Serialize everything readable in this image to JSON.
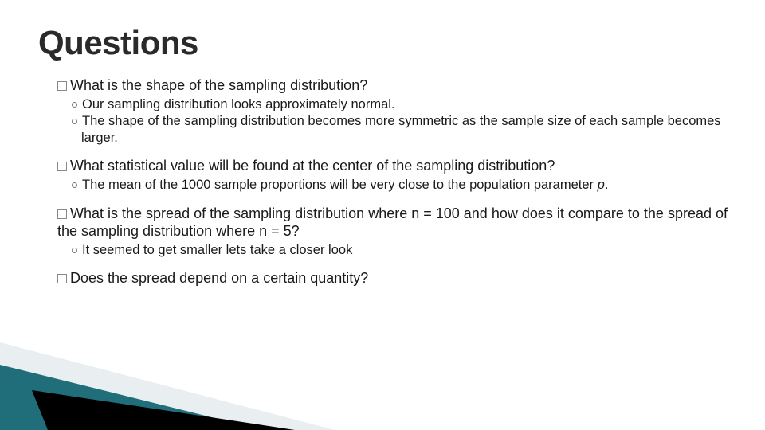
{
  "title": "Questions",
  "blocks": [
    {
      "question_prefix": "What",
      "question_rest": " is the shape of the sampling distribution?",
      "subs": [
        "Our sampling distribution looks approximately normal.",
        "The shape of the sampling distribution becomes more symmetric as the sample size of each sample becomes larger."
      ]
    },
    {
      "question_prefix": "What",
      "question_rest": " statistical value will be found at the center of the sampling distribution?",
      "subs_html": [
        "The mean of the 1000 sample proportions will be very close to the population parameter <span class=\"em\">p</span>."
      ]
    },
    {
      "question_prefix": "What",
      "question_rest": " is the spread of the sampling distribution where n = 100 and how does it compare to the spread of the sampling distribution where n = 5?",
      "subs": [
        "It seemed to get smaller lets take a closer look"
      ]
    },
    {
      "question_prefix": "Does",
      "question_rest": " the spread depend on a certain quantity?",
      "subs": []
    }
  ],
  "colors": {
    "triangle_teal": "#1f6e79",
    "triangle_black": "#000000",
    "triangle_light": "#e9eef0",
    "title_color": "#2a2a2a",
    "text_color": "#1a1a1a"
  }
}
